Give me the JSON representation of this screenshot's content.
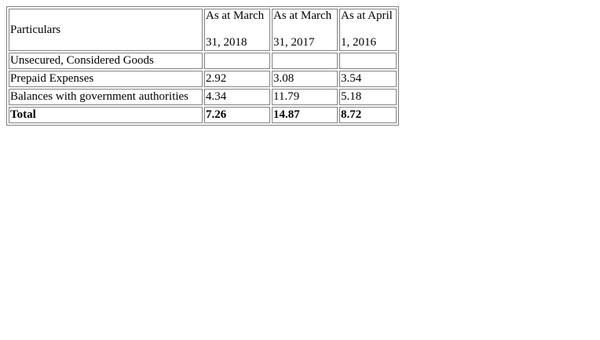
{
  "table": {
    "headers": {
      "particulars": "Particulars",
      "col_2018": [
        "As at March",
        "31, 2018"
      ],
      "col_2017": [
        "As at March",
        "31, 2017"
      ],
      "col_2016": [
        "As at April",
        "1, 2016"
      ]
    },
    "rows": [
      {
        "particulars": "Unsecured, Considered Goods",
        "v2018": "",
        "v2017": "",
        "v2016": ""
      },
      {
        "particulars": "Prepaid Expenses",
        "v2018": "2.92",
        "v2017": "3.08",
        "v2016": "3.54"
      },
      {
        "particulars": "Balances with government authorities",
        "v2018": "4.34",
        "v2017": "11.79",
        "v2016": "5.18"
      }
    ],
    "total": {
      "particulars": "Total",
      "v2018": "7.26",
      "v2017": "14.87",
      "v2016": "8.72"
    }
  }
}
